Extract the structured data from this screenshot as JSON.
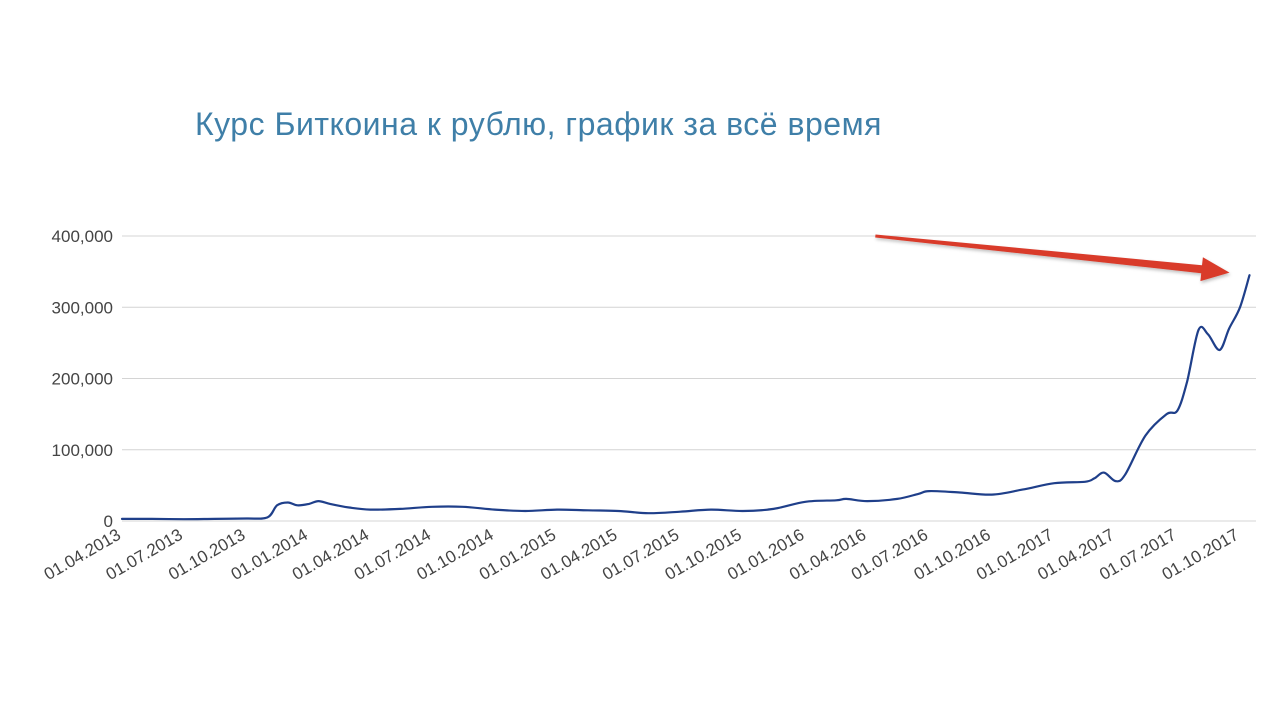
{
  "chart_data": {
    "type": "line",
    "title": "Курс Биткоина к рублю, график за всё время",
    "xlabel": "",
    "ylabel": "",
    "ylim": [
      0,
      400000
    ],
    "y_ticks": [
      "400,000",
      "300,000",
      "200,000",
      "100,000",
      "0"
    ],
    "y_tick_values": [
      400000,
      300000,
      200000,
      100000,
      0
    ],
    "x_ticks": [
      "01.04.2013",
      "01.07.2013",
      "01.10.2013",
      "01.01.2014",
      "01.04.2014",
      "01.07.2014",
      "01.10.2014",
      "01.01.2015",
      "01.04.2015",
      "01.07.2015",
      "01.10.2015",
      "01.01.2016",
      "01.04.2016",
      "01.07.2016",
      "01.10.2016",
      "01.01.2017",
      "01.04.2017",
      "01.07.2017",
      "01.10.2017"
    ],
    "grid": true,
    "line_color": "#1f3f8a",
    "series": [
      {
        "x": [
          "01.04.2013",
          "15.05.2013",
          "01.07.2013",
          "15.08.2013",
          "01.10.2013",
          "01.11.2013",
          "15.11.2013",
          "01.12.2013",
          "15.12.2013",
          "01.01.2014",
          "15.01.2014",
          "01.02.2014",
          "01.03.2014",
          "01.04.2014",
          "15.05.2014",
          "01.07.2014",
          "15.08.2014",
          "01.10.2014",
          "15.11.2014",
          "01.01.2015",
          "15.02.2015",
          "01.04.2015",
          "15.05.2015",
          "01.07.2015",
          "15.08.2015",
          "01.10.2015",
          "15.11.2015",
          "01.01.2016",
          "15.02.2016",
          "01.03.2016",
          "01.04.2016",
          "15.05.2016",
          "15.06.2016",
          "01.07.2016",
          "15.08.2016",
          "01.10.2016",
          "15.11.2016",
          "01.01.2017",
          "15.02.2017",
          "01.03.2017",
          "15.03.2017",
          "01.04.2017",
          "15.04.2017",
          "15.05.2017",
          "15.06.2017",
          "01.07.2017",
          "15.07.2017",
          "01.08.2017",
          "15.08.2017",
          "01.09.2017",
          "15.09.2017",
          "01.10.2017",
          "15.10.2017"
        ],
        "values": [
          3000,
          3000,
          2500,
          3000,
          3500,
          5000,
          22000,
          26000,
          22000,
          24000,
          28000,
          24000,
          19000,
          16000,
          17000,
          20000,
          20000,
          16000,
          14000,
          16000,
          15000,
          14000,
          11000,
          13000,
          16000,
          14000,
          17000,
          27000,
          29000,
          31000,
          28000,
          31000,
          38000,
          42000,
          40000,
          37000,
          44000,
          53000,
          55000,
          60000,
          68000,
          56000,
          65000,
          120000,
          150000,
          155000,
          195000,
          268000,
          262000,
          240000,
          270000,
          300000,
          345000
        ]
      }
    ],
    "annotations": [
      {
        "type": "arrow",
        "color": "#d93a2b",
        "from": [
          "01.04.2016",
          400000
        ],
        "to": [
          "15.10.2017",
          350000
        ]
      }
    ]
  }
}
